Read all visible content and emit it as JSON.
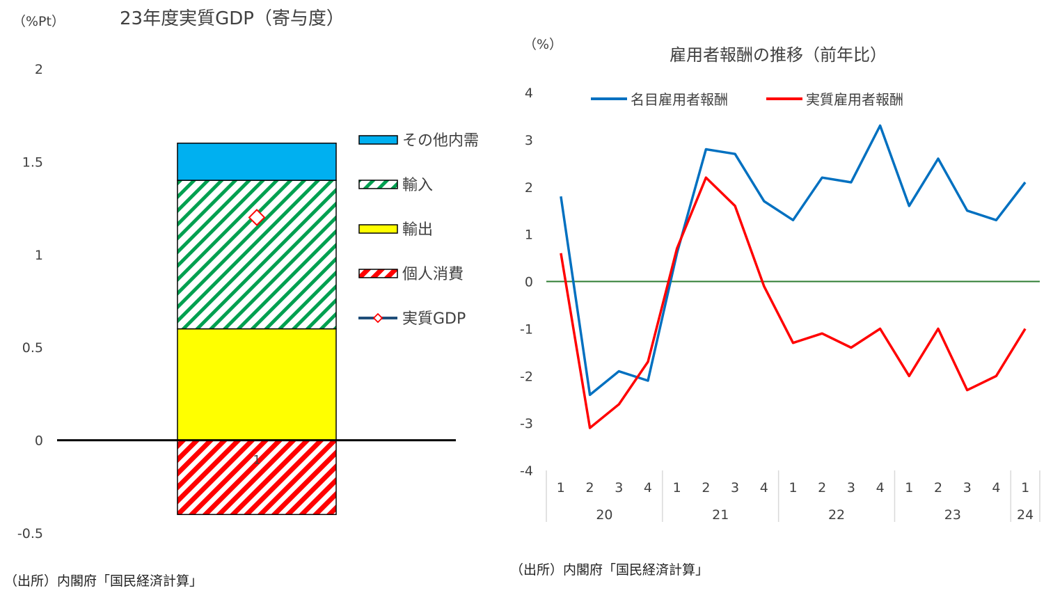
{
  "chart_data": [
    {
      "type": "bar",
      "title": "23年度実質GDP（寄与度）",
      "ylabel": "（%Pt）",
      "ylim": [
        -0.5,
        2
      ],
      "yticks": [
        "2",
        "1.5",
        "1",
        "0.5",
        "0",
        "-0.5"
      ],
      "yticks_values": [
        2,
        1.5,
        1,
        0.5,
        0,
        -0.5
      ],
      "categories": [
        "1"
      ],
      "series": [
        {
          "name": "個人消費",
          "values": [
            -0.4
          ],
          "color": "#ff0000",
          "pattern": "hatch"
        },
        {
          "name": "輸出",
          "values": [
            0.6
          ],
          "color": "#ffff00",
          "pattern": "solid"
        },
        {
          "name": "輸入",
          "values": [
            0.8
          ],
          "color": "#00a050",
          "pattern": "hatch"
        },
        {
          "name": "その他内需",
          "values": [
            0.2
          ],
          "color": "#00b0f0",
          "pattern": "solid"
        },
        {
          "name": "実質GDP",
          "values": [
            1.2
          ],
          "color": "#ff0000",
          "pattern": "marker"
        }
      ],
      "legend_order": [
        "その他内需",
        "輸入",
        "輸出",
        "個人消費",
        "実質GDP"
      ],
      "legend_placement": "right",
      "source": "（出所）内閣府「国民経済計算」"
    },
    {
      "type": "line",
      "title": "雇用者報酬の推移（前年比）",
      "ylabel": "（%）",
      "ylim": [
        -4,
        4
      ],
      "yticks": [
        "4",
        "3",
        "2",
        "1",
        "0",
        "-1",
        "-2",
        "-3",
        "-4"
      ],
      "yticks_values": [
        4,
        3,
        2,
        1,
        0,
        -1,
        -2,
        -3,
        -4
      ],
      "x_quarters": [
        "1",
        "2",
        "3",
        "4",
        "1",
        "2",
        "3",
        "4",
        "1",
        "2",
        "3",
        "4",
        "1",
        "2",
        "3",
        "4",
        "1"
      ],
      "x_years": [
        {
          "label": "20",
          "count": 4
        },
        {
          "label": "21",
          "count": 4
        },
        {
          "label": "22",
          "count": 4
        },
        {
          "label": "23",
          "count": 4
        },
        {
          "label": "24",
          "count": 1
        }
      ],
      "series": [
        {
          "name": "名目雇用者報酬",
          "color": "#0070c0",
          "values": [
            1.8,
            -2.4,
            -1.9,
            -2.1,
            0.6,
            2.8,
            2.7,
            1.7,
            1.3,
            2.2,
            2.1,
            3.3,
            1.6,
            2.6,
            1.5,
            1.3,
            2.1
          ]
        },
        {
          "name": "実質雇用者報酬",
          "color": "#ff0000",
          "values": [
            0.6,
            -3.1,
            -2.6,
            -1.7,
            0.7,
            2.2,
            1.6,
            -0.1,
            -1.3,
            -1.1,
            -1.4,
            -1.0,
            -2.0,
            -1.0,
            -2.3,
            -2.0,
            -1.0
          ]
        }
      ],
      "zero_line_color": "#2e7d32",
      "legend_placement": "top",
      "source": "（出所）内閣府「国民経済計算」"
    }
  ]
}
